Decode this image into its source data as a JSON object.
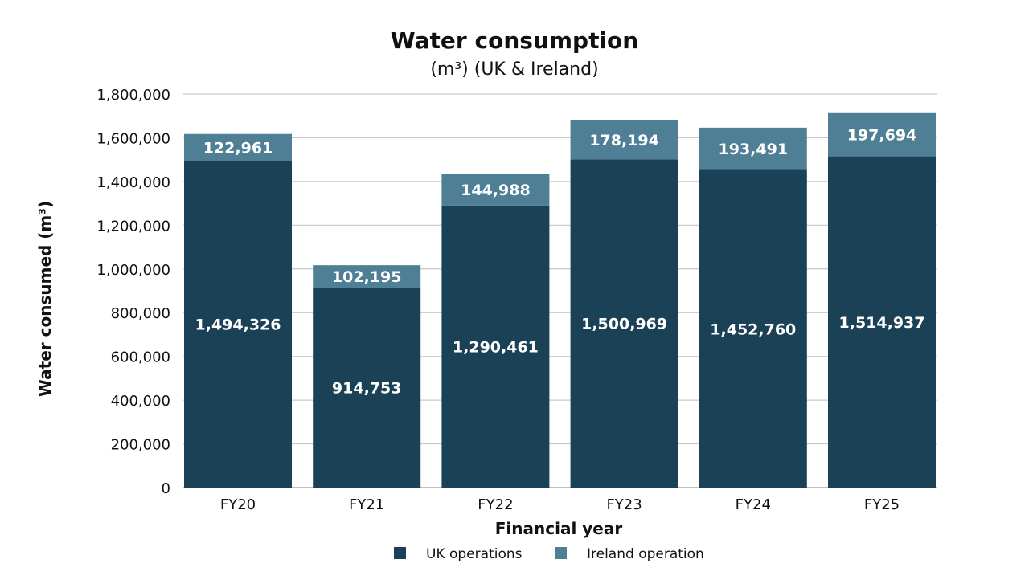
{
  "chart_data": {
    "type": "bar",
    "stacked": true,
    "title": "Water consumption",
    "subtitle": "(m³) (UK & Ireland)",
    "xlabel": "Financial year",
    "ylabel": "Water consumed (m³)",
    "ylim": [
      0,
      1800000
    ],
    "yticks": [
      0,
      200000,
      400000,
      600000,
      800000,
      1000000,
      1200000,
      1400000,
      1600000,
      1800000
    ],
    "ytick_labels": [
      "0",
      "200,000",
      "400,000",
      "600,000",
      "800,000",
      "1,000,000",
      "1,200,000",
      "1,400,000",
      "1,600,000",
      "1,800,000"
    ],
    "grid": true,
    "legend_position": "bottom",
    "categories": [
      "FY20",
      "FY21",
      "FY22",
      "FY23",
      "FY24",
      "FY25"
    ],
    "series": [
      {
        "name": "UK operations",
        "color": "#1b4157",
        "values": [
          1494326,
          914753,
          1290461,
          1500969,
          1452760,
          1514937
        ],
        "labels": [
          "1,494,326",
          "914,753",
          "1,290,461",
          "1,500,969",
          "1,452,760",
          "1,514,937"
        ]
      },
      {
        "name": "Ireland operation",
        "color": "#4e7f94",
        "values": [
          122961,
          102195,
          144988,
          178194,
          193491,
          197694
        ],
        "labels": [
          "122,961",
          "102,195",
          "144,988",
          "178,194",
          "193,491",
          "197,694"
        ]
      }
    ]
  }
}
